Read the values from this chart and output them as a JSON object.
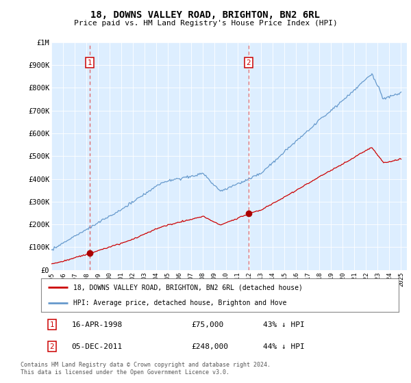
{
  "title": "18, DOWNS VALLEY ROAD, BRIGHTON, BN2 6RL",
  "subtitle": "Price paid vs. HM Land Registry's House Price Index (HPI)",
  "background_color": "#ddeeff",
  "plot_bg_color": "#ddeeff",
  "ylim": [
    0,
    1000000
  ],
  "yticks": [
    0,
    100000,
    200000,
    300000,
    400000,
    500000,
    600000,
    700000,
    800000,
    900000,
    1000000
  ],
  "ytick_labels": [
    "£0",
    "£100K",
    "£200K",
    "£300K",
    "£400K",
    "£500K",
    "£600K",
    "£700K",
    "£800K",
    "£900K",
    "£1M"
  ],
  "sale1_date": "16-APR-1998",
  "sale1_price": 75000,
  "sale1_label": "1",
  "sale1_x": 1998.29,
  "sale2_date": "05-DEC-2011",
  "sale2_price": 248000,
  "sale2_label": "2",
  "sale2_x": 2011.92,
  "legend_line1": "18, DOWNS VALLEY ROAD, BRIGHTON, BN2 6RL (detached house)",
  "legend_line2": "HPI: Average price, detached house, Brighton and Hove",
  "footer": "Contains HM Land Registry data © Crown copyright and database right 2024.\nThis data is licensed under the Open Government Licence v3.0.",
  "red_line_color": "#cc0000",
  "blue_line_color": "#6699cc",
  "vline_color": "#dd4444",
  "dot_color": "#aa0000",
  "box_color": "#cc0000",
  "grid_color": "#cccccc",
  "ann_date1": "16-APR-1998",
  "ann_price1": "£75,000",
  "ann_pct1": "43% ↓ HPI",
  "ann_date2": "05-DEC-2011",
  "ann_price2": "£248,000",
  "ann_pct2": "44% ↓ HPI"
}
